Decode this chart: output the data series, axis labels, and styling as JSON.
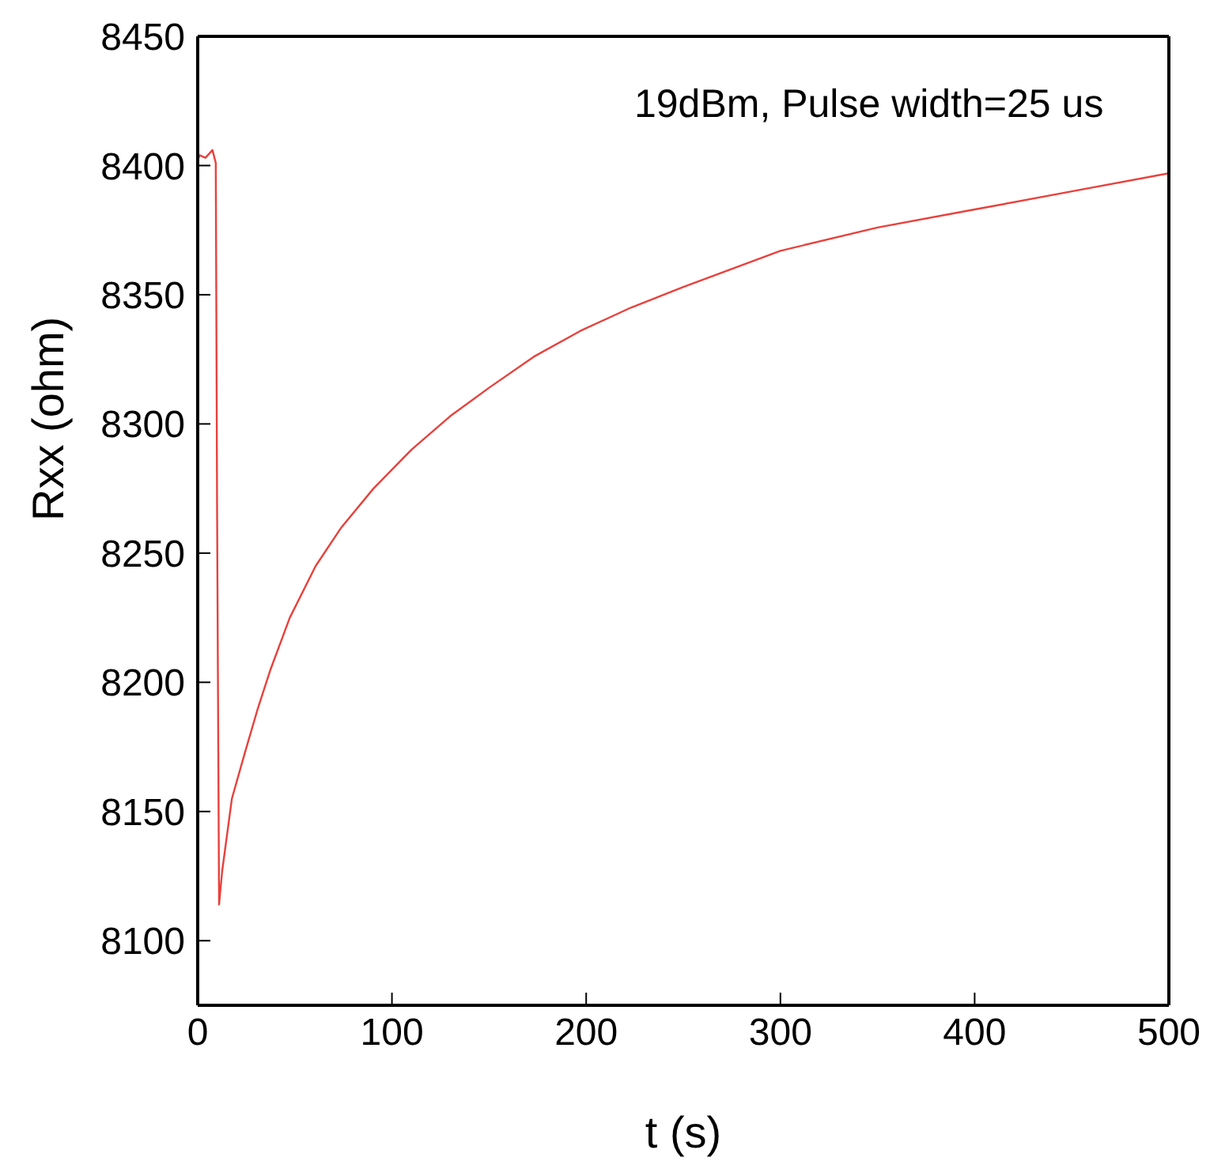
{
  "chart_data": {
    "type": "line",
    "xlabel": "t (s)",
    "ylabel": "Rxx (ohm)",
    "annotations": [
      "19dBm, Pulse width=25 us"
    ],
    "x": [
      0,
      1,
      4,
      7.6,
      9.3,
      10,
      11,
      12.6,
      17.6,
      24,
      31,
      37.5,
      47.4,
      60.7,
      74,
      90.5,
      110,
      130,
      150,
      173,
      197,
      223,
      250,
      300,
      350,
      400,
      450,
      500
    ],
    "series": [
      {
        "color": "#e8413c",
        "values": [
          8402,
          8404,
          8403,
          8406,
          8401,
          8263,
          8114,
          8127,
          8155,
          8172,
          8190,
          8205,
          8225,
          8245,
          8260,
          8275,
          8290,
          8303,
          8314,
          8326,
          8336,
          8345,
          8353,
          8367,
          8376,
          8383,
          8390,
          8397
        ]
      }
    ],
    "xlim": [
      0,
      500
    ],
    "xticks": [
      0,
      100,
      200,
      300,
      400,
      500
    ],
    "ylim": [
      8075,
      8450
    ],
    "yticks": [
      8100,
      8150,
      8200,
      8250,
      8300,
      8350,
      8400,
      8450
    ],
    "grid": false,
    "marker": "none",
    "line_style": "solid"
  }
}
